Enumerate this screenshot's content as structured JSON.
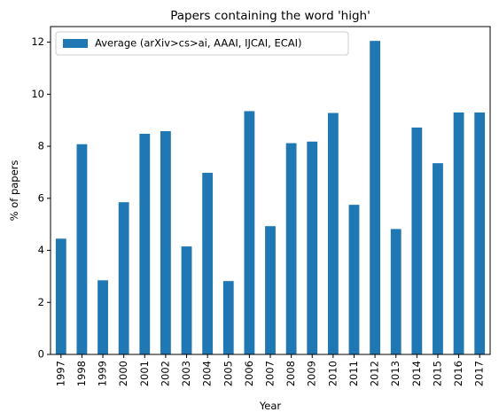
{
  "chart_data": {
    "type": "bar",
    "title": "Papers containing the word 'high'",
    "xlabel": "Year",
    "ylabel": "% of papers",
    "ylim": [
      0,
      12.6
    ],
    "yticks": [
      0,
      2,
      4,
      6,
      8,
      10,
      12
    ],
    "grid": false,
    "legend_position": "top-left",
    "categories": [
      "1997",
      "1998",
      "1999",
      "2000",
      "2001",
      "2002",
      "2003",
      "2004",
      "2005",
      "2006",
      "2007",
      "2008",
      "2009",
      "2010",
      "2011",
      "2012",
      "2013",
      "2014",
      "2015",
      "2016",
      "2017"
    ],
    "series": [
      {
        "name": "Average (arXiv>cs>ai, AAAI, IJCAI, ECAI)",
        "color": "#1f77b4",
        "values": [
          4.45,
          8.08,
          2.85,
          5.85,
          8.48,
          8.58,
          4.15,
          6.98,
          2.82,
          9.35,
          4.93,
          8.12,
          8.18,
          9.28,
          5.75,
          12.05,
          4.82,
          8.72,
          7.35,
          9.3,
          9.3
        ]
      }
    ]
  }
}
